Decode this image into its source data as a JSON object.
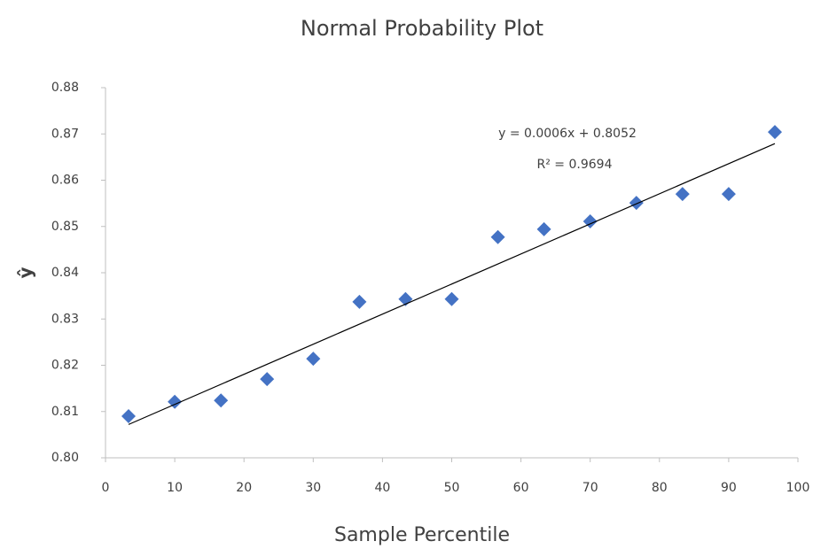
{
  "chart_data": {
    "type": "scatter",
    "title": "Normal Probability Plot",
    "x_label": "Sample Percentile",
    "y_label": "ŷ",
    "x": [
      3.33,
      10,
      16.67,
      23.33,
      30,
      36.67,
      43.33,
      50,
      56.67,
      63.33,
      70,
      76.67,
      83.33,
      90,
      96.67
    ],
    "values": [
      0.809,
      0.8121,
      0.8124,
      0.817,
      0.8214,
      0.8337,
      0.8343,
      0.8343,
      0.8477,
      0.8494,
      0.8511,
      0.8551,
      0.857,
      0.857,
      0.8704
    ],
    "color": "#4472c4",
    "trendline": {
      "x": [
        3.33,
        96.67
      ],
      "y": [
        0.8072,
        0.8679
      ],
      "color": "#000000",
      "equation": "y = 0.0006x + 0.8052",
      "r_squared": "R² = 0.9694"
    },
    "xlim": [
      0,
      100
    ],
    "xticks": [
      0,
      10,
      20,
      30,
      40,
      50,
      60,
      70,
      80,
      90,
      100
    ],
    "ylim": [
      0.8,
      0.88
    ],
    "yticks": [
      {
        "value": 0.8,
        "label": "0.80"
      },
      0.81,
      0.82,
      0.83,
      0.84,
      0.85,
      0.86,
      0.87,
      0.88
    ],
    "grid": false
  }
}
